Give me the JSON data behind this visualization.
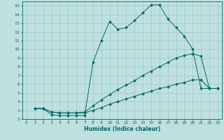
{
  "xlabel": "Humidex (Indice chaleur)",
  "background_color": "#c0e0e0",
  "grid_color": "#98c8c8",
  "line_color": "#006868",
  "xlim": [
    -0.5,
    23.5
  ],
  "ylim": [
    2,
    15.5
  ],
  "xticks": [
    0,
    1,
    2,
    3,
    4,
    5,
    6,
    7,
    8,
    9,
    10,
    11,
    12,
    13,
    14,
    15,
    16,
    17,
    18,
    19,
    20,
    21,
    22,
    23
  ],
  "yticks": [
    2,
    3,
    4,
    5,
    6,
    7,
    8,
    9,
    10,
    11,
    12,
    13,
    14,
    15
  ],
  "line1_x": [
    1,
    2,
    3,
    4,
    5,
    6,
    7,
    8,
    9,
    10,
    11,
    12,
    13,
    14,
    15,
    16,
    17,
    18,
    19,
    20,
    21,
    22,
    23
  ],
  "line1_y": [
    3.2,
    3.2,
    2.5,
    2.4,
    2.4,
    2.4,
    2.4,
    8.5,
    11.0,
    13.2,
    12.3,
    12.5,
    13.3,
    14.2,
    15.1,
    15.1,
    13.5,
    12.5,
    11.5,
    10.0,
    5.5,
    5.5,
    5.5
  ],
  "line2_x": [
    1,
    2,
    3,
    4,
    5,
    6,
    7,
    8,
    9,
    10,
    11,
    12,
    13,
    14,
    15,
    16,
    17,
    18,
    19,
    20,
    21,
    22,
    23
  ],
  "line2_y": [
    3.2,
    3.2,
    2.8,
    2.7,
    2.7,
    2.7,
    2.8,
    3.5,
    4.2,
    4.8,
    5.4,
    5.9,
    6.4,
    7.0,
    7.5,
    8.0,
    8.5,
    9.0,
    9.3,
    9.5,
    9.2,
    5.5,
    5.5
  ],
  "line3_x": [
    1,
    2,
    3,
    4,
    5,
    6,
    7,
    8,
    9,
    10,
    11,
    12,
    13,
    14,
    15,
    16,
    17,
    18,
    19,
    20,
    21,
    22,
    23
  ],
  "line3_y": [
    3.2,
    3.2,
    2.8,
    2.7,
    2.7,
    2.7,
    2.7,
    3.0,
    3.3,
    3.7,
    4.0,
    4.3,
    4.6,
    4.9,
    5.2,
    5.5,
    5.7,
    6.0,
    6.2,
    6.5,
    6.5,
    5.5,
    5.5
  ]
}
